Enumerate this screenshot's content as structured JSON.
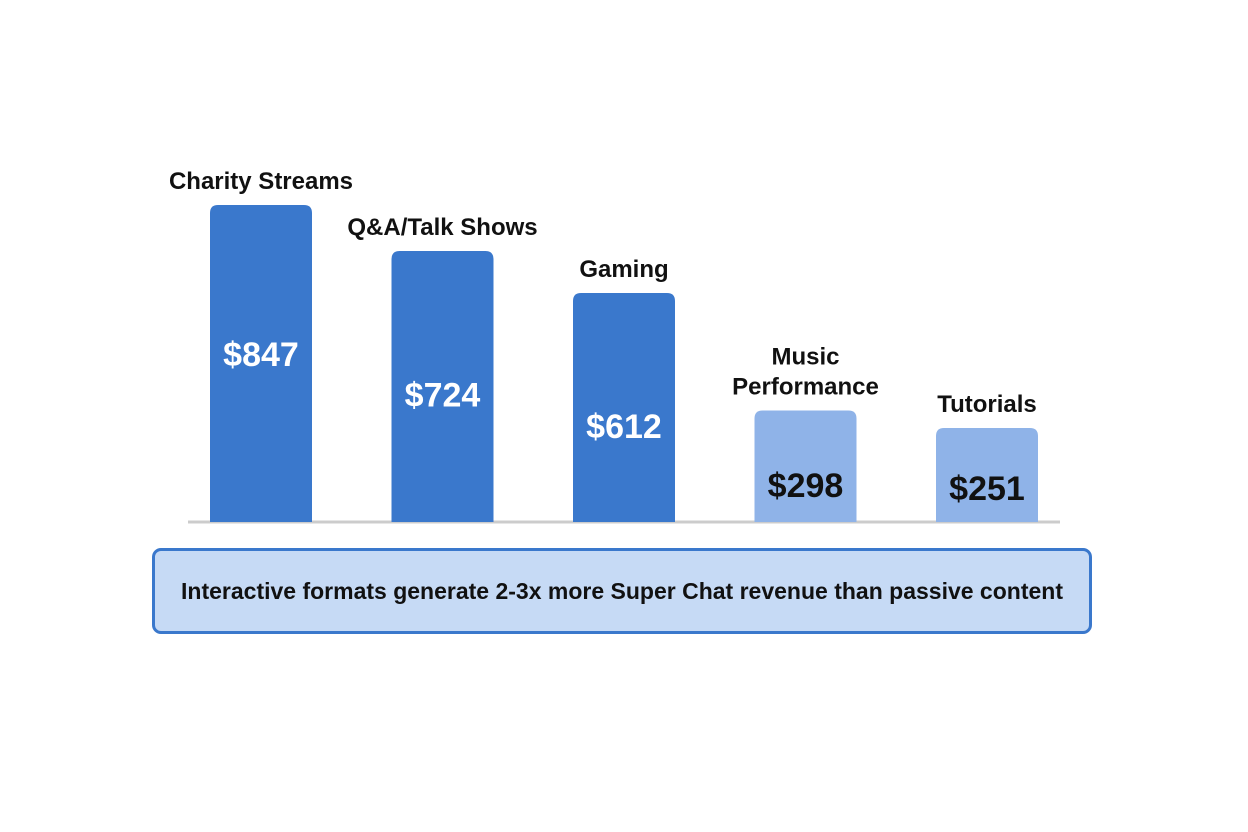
{
  "chart_data": {
    "type": "bar",
    "categories": [
      "Charity Streams",
      "Q&A/Talk Shows",
      "Gaming",
      "Music Performance",
      "Tutorials"
    ],
    "category_lines": [
      [
        "Charity Streams"
      ],
      [
        "Q&A/Talk Shows"
      ],
      [
        "Gaming"
      ],
      [
        "Music",
        "Performance"
      ],
      [
        "Tutorials"
      ]
    ],
    "values": [
      847,
      724,
      612,
      298,
      251
    ],
    "value_labels": [
      "$847",
      "$724",
      "$612",
      "$298",
      "$251"
    ],
    "groups": [
      "interactive",
      "interactive",
      "interactive",
      "passive",
      "passive"
    ],
    "title": "",
    "xlabel": "",
    "ylabel": "",
    "grid": false,
    "colors": {
      "interactive_bar": "#3a78cc",
      "passive_bar": "#8fb3e8",
      "interactive_label": "#ffffff",
      "passive_label": "#111111",
      "baseline": "#cccccc"
    }
  },
  "callout": {
    "text": "Interactive formats generate 2-3x more Super Chat revenue than passive content",
    "background": "#c6daf5",
    "border": "#3a78cc"
  }
}
